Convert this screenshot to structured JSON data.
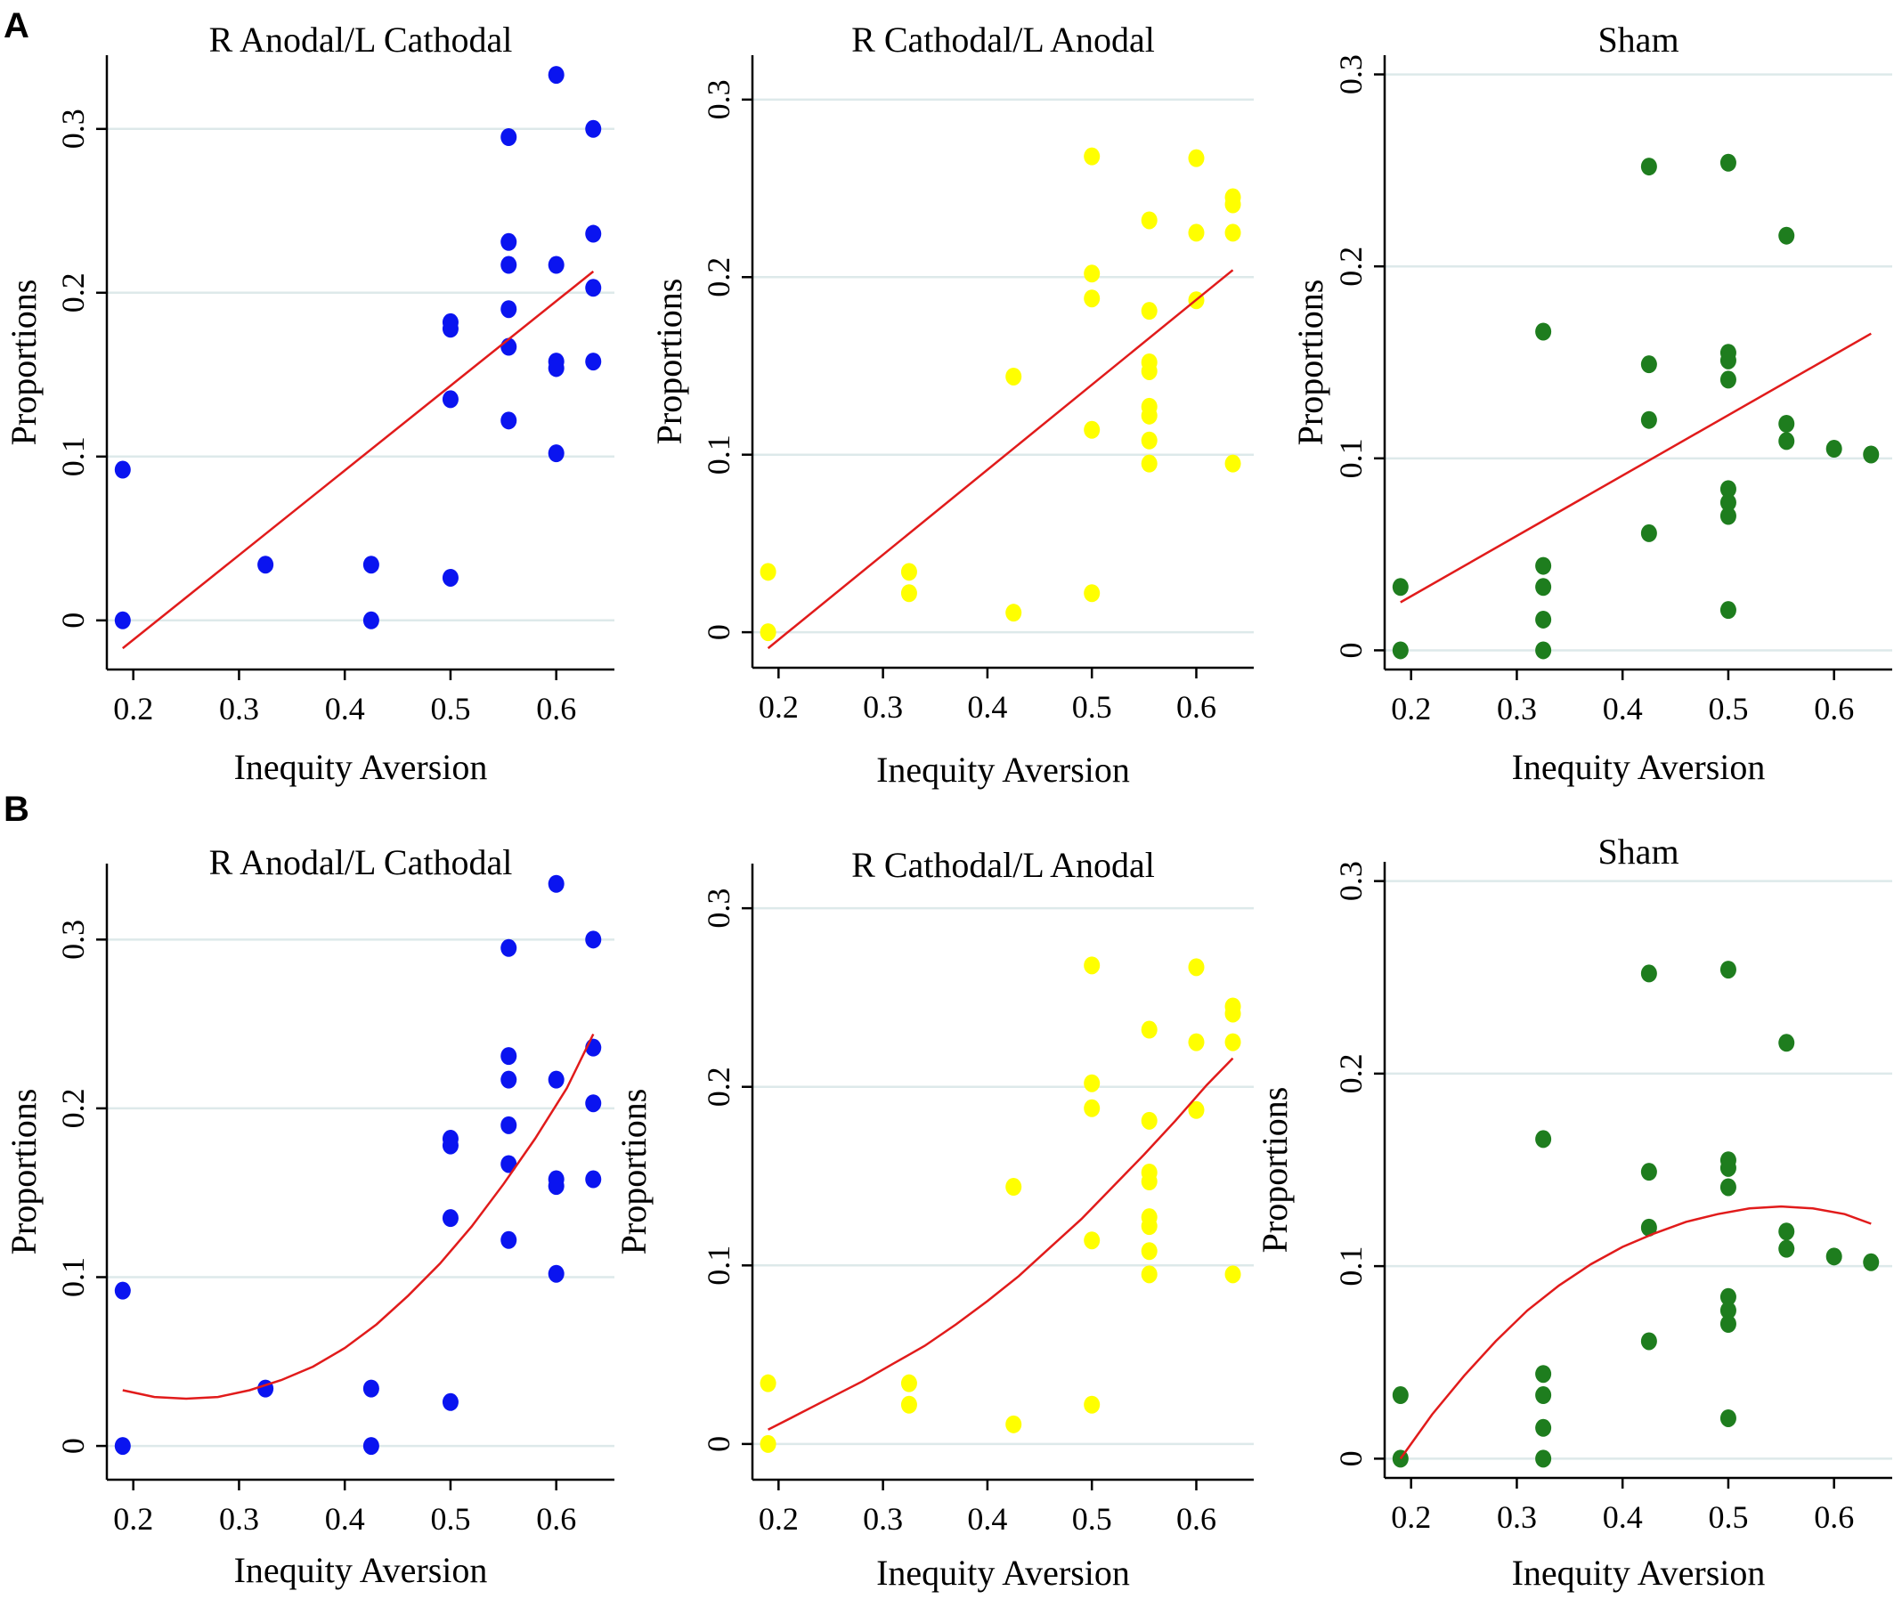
{
  "panels": [
    {
      "label": "A"
    },
    {
      "label": "B"
    }
  ],
  "colors": {
    "blue": "#0a14f0",
    "yellow": "#ffff00",
    "green": "#1e7d1e",
    "fit": "#e11b1b",
    "grid": "#dde9ea"
  },
  "chart_data": [
    {
      "id": "A1",
      "panel": "A",
      "type": "scatter",
      "fit": "linear",
      "title": "R Anodal/L Cathodal",
      "xlabel": "Inequity Aversion",
      "ylabel": "Proportions",
      "color": "blue",
      "xlim": [
        0.175,
        0.655
      ],
      "ylim": [
        -0.03,
        0.345
      ],
      "xticks": [
        0.2,
        0.3,
        0.4,
        0.5,
        0.6
      ],
      "xtick_labels": [
        "0.2",
        "0.3",
        "0.4",
        "0.5",
        "0.6"
      ],
      "yticks": [
        0,
        0.1,
        0.2,
        0.3
      ],
      "ytick_labels": [
        "0",
        "0.1",
        "0.2",
        "0.3"
      ],
      "points": [
        [
          0.19,
          0.092
        ],
        [
          0.19,
          0.0
        ],
        [
          0.325,
          0.034
        ],
        [
          0.425,
          0.034
        ],
        [
          0.425,
          0.0
        ],
        [
          0.5,
          0.182
        ],
        [
          0.5,
          0.178
        ],
        [
          0.5,
          0.135
        ],
        [
          0.5,
          0.026
        ],
        [
          0.555,
          0.295
        ],
        [
          0.555,
          0.231
        ],
        [
          0.555,
          0.217
        ],
        [
          0.555,
          0.19
        ],
        [
          0.555,
          0.167
        ],
        [
          0.555,
          0.122
        ],
        [
          0.6,
          0.333
        ],
        [
          0.6,
          0.217
        ],
        [
          0.6,
          0.158
        ],
        [
          0.6,
          0.154
        ],
        [
          0.6,
          0.102
        ],
        [
          0.635,
          0.3
        ],
        [
          0.635,
          0.236
        ],
        [
          0.635,
          0.203
        ],
        [
          0.635,
          0.158
        ]
      ],
      "fit_curve": {
        "x": [
          0.19,
          0.635
        ],
        "y": [
          -0.017,
          0.213
        ]
      }
    },
    {
      "id": "A2",
      "panel": "A",
      "type": "scatter",
      "fit": "linear",
      "title": "R Cathodal/L Anodal",
      "xlabel": "Inequity Aversion",
      "ylabel": "Proportions",
      "color": "yellow",
      "xlim": [
        0.175,
        0.655
      ],
      "ylim": [
        -0.02,
        0.325
      ],
      "xticks": [
        0.2,
        0.3,
        0.4,
        0.5,
        0.6
      ],
      "xtick_labels": [
        "0.2",
        "0.3",
        "0.4",
        "0.5",
        "0.6"
      ],
      "yticks": [
        0,
        0.1,
        0.2,
        0.3
      ],
      "ytick_labels": [
        "0",
        "0.1",
        "0.2",
        "0.3"
      ],
      "points": [
        [
          0.19,
          0.034
        ],
        [
          0.19,
          0.0
        ],
        [
          0.325,
          0.034
        ],
        [
          0.325,
          0.022
        ],
        [
          0.425,
          0.144
        ],
        [
          0.425,
          0.011
        ],
        [
          0.5,
          0.268
        ],
        [
          0.5,
          0.202
        ],
        [
          0.5,
          0.188
        ],
        [
          0.5,
          0.114
        ],
        [
          0.5,
          0.022
        ],
        [
          0.555,
          0.232
        ],
        [
          0.555,
          0.181
        ],
        [
          0.555,
          0.152
        ],
        [
          0.555,
          0.147
        ],
        [
          0.555,
          0.127
        ],
        [
          0.555,
          0.122
        ],
        [
          0.555,
          0.108
        ],
        [
          0.555,
          0.095
        ],
        [
          0.6,
          0.267
        ],
        [
          0.6,
          0.225
        ],
        [
          0.6,
          0.187
        ],
        [
          0.635,
          0.245
        ],
        [
          0.635,
          0.241
        ],
        [
          0.635,
          0.225
        ],
        [
          0.635,
          0.095
        ]
      ],
      "fit_curve": {
        "x": [
          0.19,
          0.635
        ],
        "y": [
          -0.009,
          0.204
        ]
      }
    },
    {
      "id": "A3",
      "panel": "A",
      "type": "scatter",
      "fit": "linear",
      "title": "Sham",
      "xlabel": "Inequity Aversion",
      "ylabel": "Proportions",
      "color": "green",
      "xlim": [
        0.175,
        0.655
      ],
      "ylim": [
        -0.01,
        0.31
      ],
      "xticks": [
        0.2,
        0.3,
        0.4,
        0.5,
        0.6
      ],
      "xtick_labels": [
        "0.2",
        "0.3",
        "0.4",
        "0.5",
        "0.6"
      ],
      "yticks": [
        0,
        0.1,
        0.2,
        0.3
      ],
      "ytick_labels": [
        "0",
        "0.1",
        "0.2",
        "0.3"
      ],
      "points": [
        [
          0.19,
          0.033
        ],
        [
          0.19,
          0.0
        ],
        [
          0.325,
          0.166
        ],
        [
          0.325,
          0.044
        ],
        [
          0.325,
          0.033
        ],
        [
          0.325,
          0.016
        ],
        [
          0.325,
          0.0
        ],
        [
          0.425,
          0.252
        ],
        [
          0.425,
          0.149
        ],
        [
          0.425,
          0.12
        ],
        [
          0.425,
          0.061
        ],
        [
          0.5,
          0.254
        ],
        [
          0.5,
          0.155
        ],
        [
          0.5,
          0.151
        ],
        [
          0.5,
          0.141
        ],
        [
          0.5,
          0.084
        ],
        [
          0.5,
          0.077
        ],
        [
          0.5,
          0.07
        ],
        [
          0.5,
          0.021
        ],
        [
          0.555,
          0.216
        ],
        [
          0.555,
          0.118
        ],
        [
          0.555,
          0.109
        ],
        [
          0.6,
          0.105
        ],
        [
          0.635,
          0.102
        ]
      ],
      "fit_curve": {
        "x": [
          0.19,
          0.635
        ],
        "y": [
          0.025,
          0.165
        ]
      }
    },
    {
      "id": "B1",
      "panel": "B",
      "type": "scatter",
      "fit": "quadratic",
      "title": "R Anodal/L Cathodal",
      "xlabel": "Inequity Aversion",
      "ylabel": "Proportions",
      "color": "blue",
      "xlim": [
        0.175,
        0.655
      ],
      "ylim": [
        -0.02,
        0.345
      ],
      "xticks": [
        0.2,
        0.3,
        0.4,
        0.5,
        0.6
      ],
      "xtick_labels": [
        "0.2",
        "0.3",
        "0.4",
        "0.5",
        "0.6"
      ],
      "yticks": [
        0,
        0.1,
        0.2,
        0.3
      ],
      "ytick_labels": [
        "0",
        "0.1",
        "0.2",
        "0.3"
      ],
      "points": [
        [
          0.19,
          0.092
        ],
        [
          0.19,
          0.0
        ],
        [
          0.325,
          0.034
        ],
        [
          0.425,
          0.034
        ],
        [
          0.425,
          0.0
        ],
        [
          0.5,
          0.182
        ],
        [
          0.5,
          0.178
        ],
        [
          0.5,
          0.135
        ],
        [
          0.5,
          0.026
        ],
        [
          0.555,
          0.295
        ],
        [
          0.555,
          0.231
        ],
        [
          0.555,
          0.217
        ],
        [
          0.555,
          0.19
        ],
        [
          0.555,
          0.167
        ],
        [
          0.555,
          0.122
        ],
        [
          0.6,
          0.333
        ],
        [
          0.6,
          0.217
        ],
        [
          0.6,
          0.158
        ],
        [
          0.6,
          0.154
        ],
        [
          0.6,
          0.102
        ],
        [
          0.635,
          0.3
        ],
        [
          0.635,
          0.236
        ],
        [
          0.635,
          0.203
        ],
        [
          0.635,
          0.158
        ]
      ],
      "fit_curve": {
        "x": [
          0.19,
          0.22,
          0.25,
          0.28,
          0.31,
          0.34,
          0.37,
          0.4,
          0.43,
          0.46,
          0.49,
          0.52,
          0.55,
          0.58,
          0.61,
          0.635
        ],
        "y": [
          0.033,
          0.029,
          0.028,
          0.029,
          0.033,
          0.039,
          0.047,
          0.058,
          0.072,
          0.089,
          0.108,
          0.13,
          0.155,
          0.182,
          0.212,
          0.244
        ]
      }
    },
    {
      "id": "B2",
      "panel": "B",
      "type": "scatter",
      "fit": "quadratic",
      "title": "R Cathodal/L Anodal",
      "xlabel": "Inequity Aversion",
      "ylabel": "Proportions",
      "color": "yellow",
      "xlim": [
        0.175,
        0.655
      ],
      "ylim": [
        -0.02,
        0.325
      ],
      "xticks": [
        0.2,
        0.3,
        0.4,
        0.5,
        0.6
      ],
      "xtick_labels": [
        "0.2",
        "0.3",
        "0.4",
        "0.5",
        "0.6"
      ],
      "yticks": [
        0,
        0.1,
        0.2,
        0.3
      ],
      "ytick_labels": [
        "0",
        "0.1",
        "0.2",
        "0.3"
      ],
      "points": [
        [
          0.19,
          0.034
        ],
        [
          0.19,
          0.0
        ],
        [
          0.325,
          0.034
        ],
        [
          0.325,
          0.022
        ],
        [
          0.425,
          0.144
        ],
        [
          0.425,
          0.011
        ],
        [
          0.5,
          0.268
        ],
        [
          0.5,
          0.202
        ],
        [
          0.5,
          0.188
        ],
        [
          0.5,
          0.114
        ],
        [
          0.5,
          0.022
        ],
        [
          0.555,
          0.232
        ],
        [
          0.555,
          0.181
        ],
        [
          0.555,
          0.152
        ],
        [
          0.555,
          0.147
        ],
        [
          0.555,
          0.127
        ],
        [
          0.555,
          0.122
        ],
        [
          0.555,
          0.108
        ],
        [
          0.555,
          0.095
        ],
        [
          0.6,
          0.267
        ],
        [
          0.6,
          0.225
        ],
        [
          0.6,
          0.187
        ],
        [
          0.635,
          0.245
        ],
        [
          0.635,
          0.241
        ],
        [
          0.635,
          0.225
        ],
        [
          0.635,
          0.095
        ]
      ],
      "fit_curve": {
        "x": [
          0.19,
          0.22,
          0.25,
          0.28,
          0.31,
          0.34,
          0.37,
          0.4,
          0.43,
          0.46,
          0.49,
          0.52,
          0.55,
          0.58,
          0.61,
          0.635
        ],
        "y": [
          0.008,
          0.017,
          0.026,
          0.035,
          0.045,
          0.055,
          0.067,
          0.08,
          0.094,
          0.11,
          0.126,
          0.144,
          0.162,
          0.181,
          0.201,
          0.216
        ]
      }
    },
    {
      "id": "B3",
      "panel": "B",
      "type": "scatter",
      "fit": "quadratic",
      "title": "Sham",
      "xlabel": "Inequity Aversion",
      "ylabel": "Proportions",
      "color": "green",
      "xlim": [
        0.175,
        0.655
      ],
      "ylim": [
        -0.01,
        0.31
      ],
      "xticks": [
        0.2,
        0.3,
        0.4,
        0.5,
        0.6
      ],
      "xtick_labels": [
        "0.2",
        "0.3",
        "0.4",
        "0.5",
        "0.6"
      ],
      "yticks": [
        0,
        0.1,
        0.2,
        0.3
      ],
      "ytick_labels": [
        "0",
        "0.1",
        "0.2",
        "0.3"
      ],
      "points": [
        [
          0.19,
          0.033
        ],
        [
          0.19,
          0.0
        ],
        [
          0.325,
          0.166
        ],
        [
          0.325,
          0.044
        ],
        [
          0.325,
          0.033
        ],
        [
          0.325,
          0.016
        ],
        [
          0.325,
          0.0
        ],
        [
          0.425,
          0.252
        ],
        [
          0.425,
          0.149
        ],
        [
          0.425,
          0.12
        ],
        [
          0.425,
          0.061
        ],
        [
          0.5,
          0.254
        ],
        [
          0.5,
          0.155
        ],
        [
          0.5,
          0.151
        ],
        [
          0.5,
          0.141
        ],
        [
          0.5,
          0.084
        ],
        [
          0.5,
          0.077
        ],
        [
          0.5,
          0.07
        ],
        [
          0.5,
          0.021
        ],
        [
          0.555,
          0.216
        ],
        [
          0.555,
          0.118
        ],
        [
          0.555,
          0.109
        ],
        [
          0.6,
          0.105
        ],
        [
          0.635,
          0.102
        ]
      ],
      "fit_curve": {
        "x": [
          0.19,
          0.22,
          0.25,
          0.28,
          0.31,
          0.34,
          0.37,
          0.4,
          0.43,
          0.46,
          0.49,
          0.52,
          0.55,
          0.58,
          0.61,
          0.635
        ],
        "y": [
          0.0,
          0.023,
          0.043,
          0.061,
          0.077,
          0.09,
          0.101,
          0.11,
          0.117,
          0.123,
          0.127,
          0.13,
          0.131,
          0.13,
          0.127,
          0.122
        ]
      }
    }
  ]
}
